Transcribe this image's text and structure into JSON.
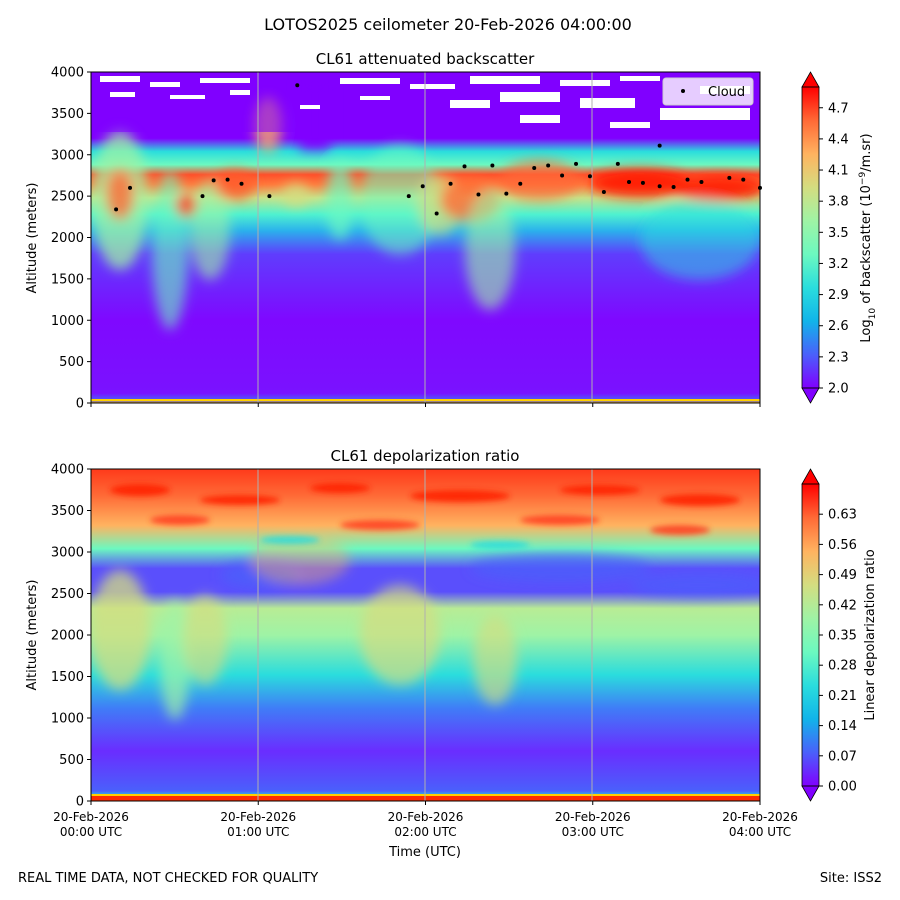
{
  "figure": {
    "title": "LOTOS2025 ceilometer 20-Feb-2026 04:00:00",
    "footer_left": "REAL TIME DATA, NOT CHECKED FOR QUALITY",
    "footer_right": "Site: ISS2"
  },
  "chart_data": [
    {
      "type": "heatmap",
      "title": "CL61 attenuated backscatter",
      "xlabel": "",
      "ylabel": "Altitude (meters)",
      "xlim_minutes": [
        0,
        240
      ],
      "ylim": [
        0,
        4000
      ],
      "yticks": [
        0,
        500,
        1000,
        1500,
        2000,
        2500,
        3000,
        3500,
        4000
      ],
      "x_gridlines_minutes": [
        60,
        120,
        180
      ],
      "colorbar": {
        "label_prefix": "Log",
        "label_sub": "10",
        "label_mid": " of backscatter (10",
        "label_sup": "−9",
        "label_suffix": "/m.sr)",
        "range": [
          2.0,
          4.9
        ],
        "ticks": [
          "2.0",
          "2.3",
          "2.6",
          "2.9",
          "3.2",
          "3.5",
          "3.8",
          "4.1",
          "4.4",
          "4.7"
        ],
        "colormap": "rainbow",
        "extend": "both"
      },
      "legend": {
        "label": "Cloud",
        "position": "top-right"
      },
      "cloud_base": [
        {
          "t": 9,
          "h": 2340
        },
        {
          "t": 14,
          "h": 2600
        },
        {
          "t": 40,
          "h": 2500
        },
        {
          "t": 44,
          "h": 2690
        },
        {
          "t": 49,
          "h": 2700
        },
        {
          "t": 54,
          "h": 2650
        },
        {
          "t": 64,
          "h": 2500
        },
        {
          "t": 74,
          "h": 3840
        },
        {
          "t": 114,
          "h": 2500
        },
        {
          "t": 119,
          "h": 2620
        },
        {
          "t": 124,
          "h": 2290
        },
        {
          "t": 129,
          "h": 2650
        },
        {
          "t": 134,
          "h": 2860
        },
        {
          "t": 139,
          "h": 2520
        },
        {
          "t": 144,
          "h": 2870
        },
        {
          "t": 149,
          "h": 2530
        },
        {
          "t": 154,
          "h": 2650
        },
        {
          "t": 159,
          "h": 2840
        },
        {
          "t": 164,
          "h": 2870
        },
        {
          "t": 169,
          "h": 2750
        },
        {
          "t": 174,
          "h": 2890
        },
        {
          "t": 179,
          "h": 2740
        },
        {
          "t": 184,
          "h": 2550
        },
        {
          "t": 189,
          "h": 2890
        },
        {
          "t": 193,
          "h": 2670
        },
        {
          "t": 198,
          "h": 2660
        },
        {
          "t": 204,
          "h": 3110
        },
        {
          "t": 204,
          "h": 2620
        },
        {
          "t": 209,
          "h": 2610
        },
        {
          "t": 214,
          "h": 2700
        },
        {
          "t": 219,
          "h": 2670
        },
        {
          "t": 229,
          "h": 2720
        },
        {
          "t": 234,
          "h": 2700
        },
        {
          "t": 240,
          "h": 2600
        }
      ]
    },
    {
      "type": "heatmap",
      "title": "CL61 depolarization ratio",
      "xlabel": "Time (UTC)",
      "ylabel": "Altitude (meters)",
      "xlim_minutes": [
        0,
        240
      ],
      "ylim": [
        0,
        4000
      ],
      "yticks": [
        0,
        500,
        1000,
        1500,
        2000,
        2500,
        3000,
        3500,
        4000
      ],
      "x_gridlines_minutes": [
        60,
        120,
        180
      ],
      "xticks": [
        {
          "minutes": 0,
          "line1": "20-Feb-2026",
          "line2": "00:00 UTC"
        },
        {
          "minutes": 60,
          "line1": "20-Feb-2026",
          "line2": "01:00 UTC"
        },
        {
          "minutes": 120,
          "line1": "20-Feb-2026",
          "line2": "02:00 UTC"
        },
        {
          "minutes": 180,
          "line1": "20-Feb-2026",
          "line2": "03:00 UTC"
        },
        {
          "minutes": 240,
          "line1": "20-Feb-2026",
          "line2": "04:00 UTC"
        }
      ],
      "colorbar": {
        "label": "Linear depolarization ratio",
        "range": [
          0.0,
          0.7
        ],
        "ticks": [
          "0.00",
          "0.07",
          "0.14",
          "0.21",
          "0.28",
          "0.35",
          "0.42",
          "0.49",
          "0.56",
          "0.63"
        ],
        "colormap": "rainbow",
        "extend": "both"
      }
    }
  ],
  "colors": {
    "grid": "#b0b0b0",
    "cloud_marker": "#000000",
    "rainbow": [
      "#8000ff",
      "#4a60fb",
      "#11b4e9",
      "#2adddd",
      "#6cf9c0",
      "#9ff3a5",
      "#d4dd80",
      "#ffb360",
      "#ff6a36",
      "#ff0000"
    ]
  }
}
